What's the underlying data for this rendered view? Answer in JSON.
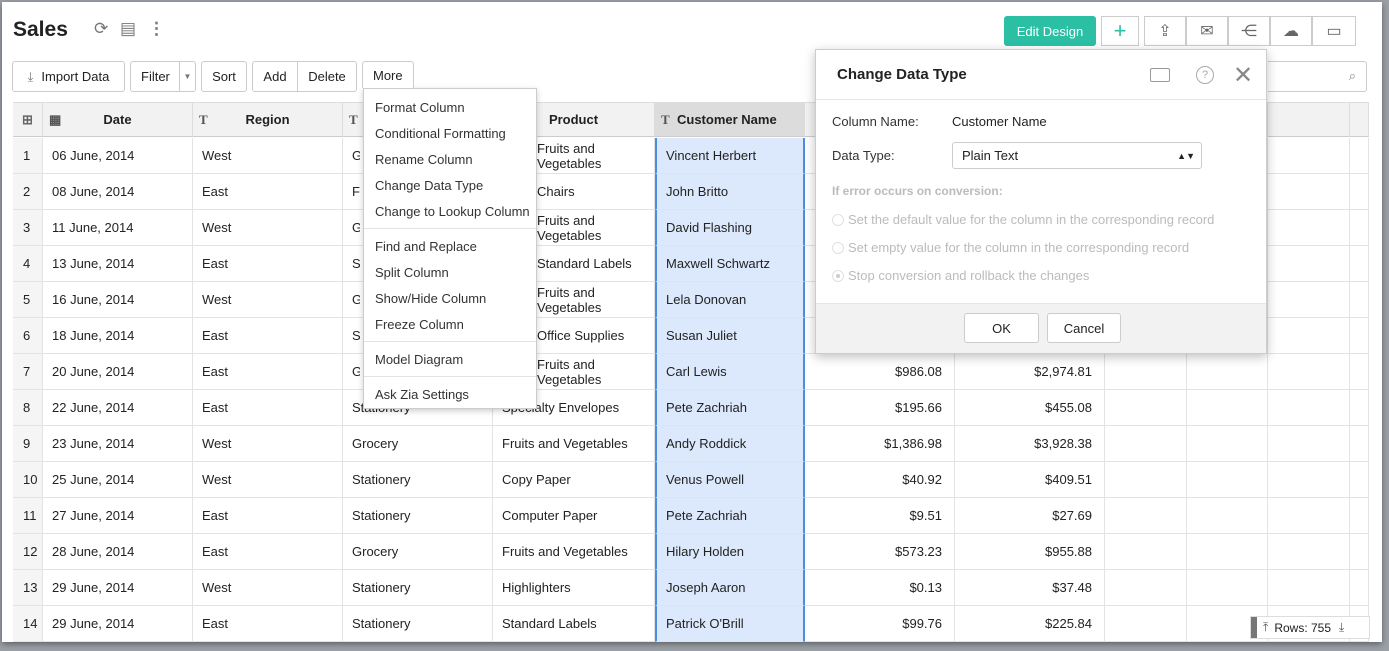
{
  "header": {
    "title": "Sales",
    "edit_design": "Edit Design",
    "accent": "#2bbfa4"
  },
  "toolbar": {
    "import": "Import Data",
    "filter": "Filter",
    "sort": "Sort",
    "add": "Add",
    "delete": "Delete",
    "more": "More"
  },
  "columns": [
    "Date",
    "Region",
    "",
    "Product",
    "Customer Name"
  ],
  "rows": [
    [
      "1",
      "06 June, 2014",
      "West",
      "Grocery",
      "Fruits and Vegetables",
      "Vincent Herbert",
      "",
      ""
    ],
    [
      "2",
      "08 June, 2014",
      "East",
      "Furniture",
      "Chairs",
      "John Britto",
      "",
      ""
    ],
    [
      "3",
      "11 June, 2014",
      "West",
      "Grocery",
      "Fruits and Vegetables",
      "David Flashing",
      "",
      ""
    ],
    [
      "4",
      "13 June, 2014",
      "East",
      "Stationery",
      "Standard Labels",
      "Maxwell Schwartz",
      "",
      ""
    ],
    [
      "5",
      "16 June, 2014",
      "West",
      "Grocery",
      "Fruits and Vegetables",
      "Lela Donovan",
      "",
      ""
    ],
    [
      "6",
      "18 June, 2014",
      "East",
      "Stationery",
      "Office Supplies",
      "Susan Juliet",
      "",
      ""
    ],
    [
      "7",
      "20 June, 2014",
      "East",
      "Grocery",
      "Fruits and Vegetables",
      "Carl Lewis",
      "$986.08",
      "$2,974.81"
    ],
    [
      "8",
      "22 June, 2014",
      "East",
      "Stationery",
      "Specialty Envelopes",
      "Pete Zachriah",
      "$195.66",
      "$455.08"
    ],
    [
      "9",
      "23 June, 2014",
      "West",
      "Grocery",
      "Fruits and Vegetables",
      "Andy Roddick",
      "$1,386.98",
      "$3,928.38"
    ],
    [
      "10",
      "25 June, 2014",
      "West",
      "Stationery",
      "Copy Paper",
      "Venus Powell",
      "$40.92",
      "$409.51"
    ],
    [
      "11",
      "27 June, 2014",
      "East",
      "Stationery",
      "Computer Paper",
      "Pete Zachriah",
      "$9.51",
      "$27.69"
    ],
    [
      "12",
      "28 June, 2014",
      "East",
      "Grocery",
      "Fruits and Vegetables",
      "Hilary Holden",
      "$573.23",
      "$955.88"
    ],
    [
      "13",
      "29 June, 2014",
      "West",
      "Stationery",
      "Highlighters",
      "Joseph Aaron",
      "$0.13",
      "$37.48"
    ],
    [
      "14",
      "29 June, 2014",
      "East",
      "Stationery",
      "Standard Labels",
      "Patrick O'Brill",
      "$99.76",
      "$225.84"
    ]
  ],
  "menu": {
    "groups": [
      [
        "Format Column",
        "Conditional Formatting",
        "Rename Column",
        "Change Data Type",
        "Change to Lookup Column"
      ],
      [
        "Find and Replace",
        "Split Column",
        "Show/Hide Column",
        "Freeze Column"
      ],
      [
        "Model Diagram"
      ],
      [
        "Ask Zia Settings"
      ]
    ]
  },
  "dialog": {
    "title": "Change Data Type",
    "column_name_label": "Column Name:",
    "column_name": "Customer Name",
    "data_type_label": "Data Type:",
    "data_type": "Plain Text",
    "error_heading": "If error occurs on conversion:",
    "options": [
      "Set the default value for the column in the corresponding record",
      "Set empty value for the column in the corresponding record",
      "Stop conversion and rollback the changes"
    ],
    "selected_option": 2,
    "ok": "OK",
    "cancel": "Cancel"
  },
  "footer": {
    "rows": "Rows: 755"
  }
}
